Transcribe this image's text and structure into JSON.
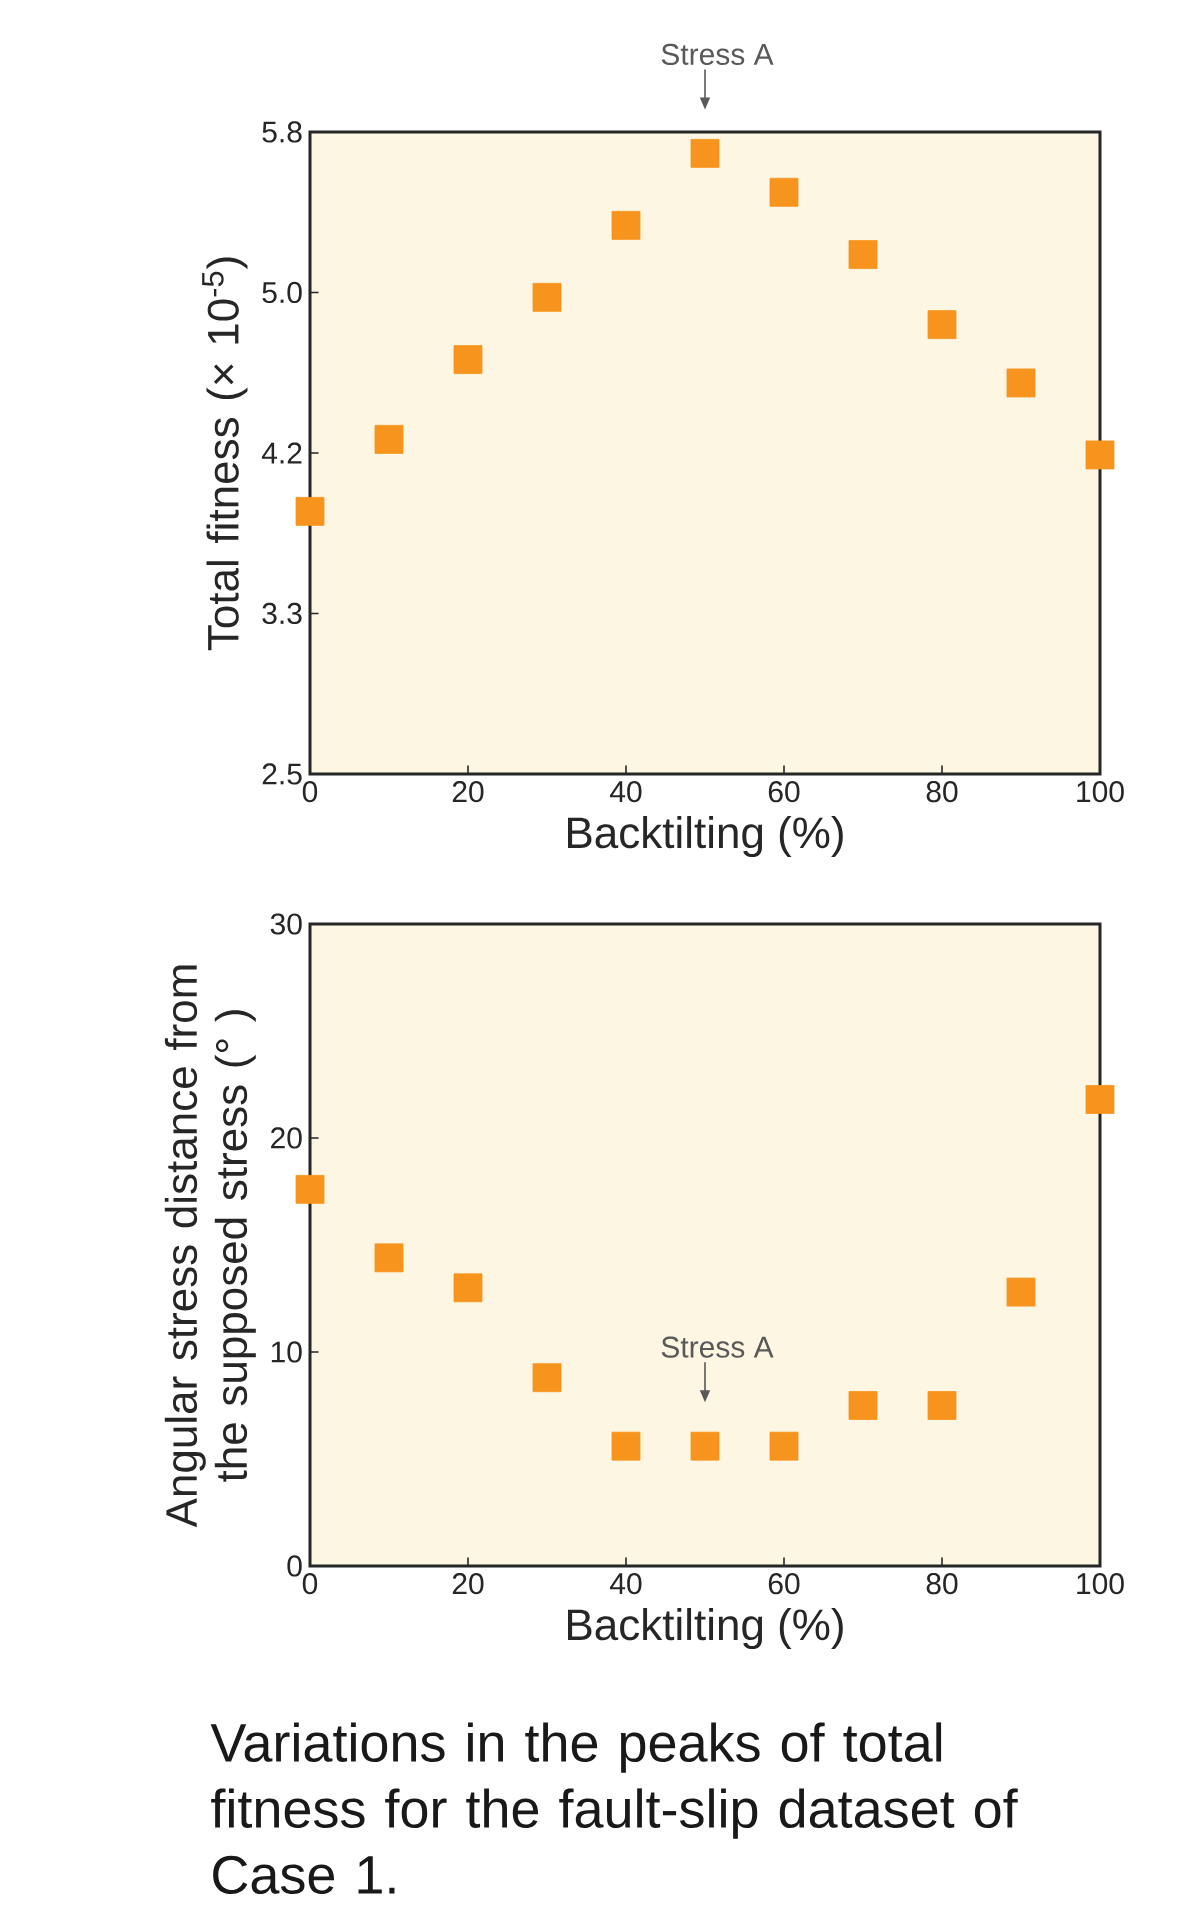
{
  "chart_data": [
    {
      "type": "scatter",
      "xlabel": "Backtilting (%)",
      "ylabel": "Total fitness (× 10$^{-5}$)",
      "x": [
        0,
        10,
        20,
        30,
        40,
        50,
        60,
        70,
        80,
        90,
        100
      ],
      "values": [
        3.85,
        4.22,
        4.63,
        4.95,
        5.32,
        5.69,
        5.49,
        5.17,
        4.81,
        4.51,
        4.14
      ],
      "color": "#f7941d",
      "marker": "square",
      "xlim": [
        0,
        100
      ],
      "xticks": [
        0,
        20,
        40,
        60,
        80,
        100
      ],
      "ylim": [
        2.5,
        5.8
      ],
      "yticks": [
        2.5,
        {
          "value": 3.325,
          "label": "3.3"
        },
        {
          "value": 4.15,
          "label": "4.2"
        },
        {
          "value": 4.975,
          "label": "5.0"
        },
        5.8
      ],
      "annotations": [
        {
          "text": "Stress A",
          "x": 50,
          "y": 5.69
        }
      ]
    },
    {
      "type": "scatter",
      "xlabel": "Backtilting (%)",
      "ylabel": "Angular stress distance from the supposed stress (° )",
      "x": [
        0,
        10,
        20,
        30,
        40,
        50,
        60,
        70,
        80,
        90,
        100
      ],
      "values": [
        17.6,
        14.4,
        13.0,
        8.8,
        5.6,
        5.6,
        5.6,
        7.5,
        7.5,
        12.8,
        21.8
      ],
      "color": "#f7941d",
      "marker": "square",
      "xlim": [
        0,
        100
      ],
      "xticks": [
        0,
        20,
        40,
        60,
        80,
        100
      ],
      "ylim": [
        0,
        30
      ],
      "yticks": [
        0,
        10,
        20,
        30
      ],
      "annotations": [
        {
          "text": "Stress A",
          "x": 50,
          "y": 5.6
        },
        "Variations in the peaks of total fitness for the fault-slip dataset of Case 1."
      ]
    }
  ]
}
